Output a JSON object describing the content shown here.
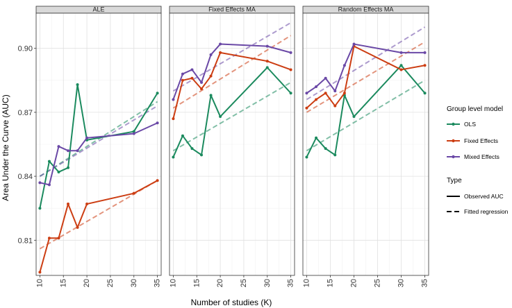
{
  "chart_data": {
    "type": "line",
    "xlabel": "Number of studies (K)",
    "ylabel": "Area Under the Curve (AUC)",
    "xticks": [
      10,
      15,
      20,
      25,
      30,
      35
    ],
    "yticks": [
      0.81,
      0.84,
      0.87,
      0.9
    ],
    "ytick_labels": [
      "0.81",
      "0.84",
      "0.87",
      "0.90"
    ],
    "xlim": [
      9.2,
      35.8
    ],
    "ylim": [
      0.7935,
      0.9165
    ],
    "grid": true,
    "legend_placement": "right",
    "colors": {
      "OLS": "#1b8a5e",
      "Fixed Effects": "#cc3d12",
      "Mixed Effects": "#6a48a6"
    },
    "legend": {
      "groups_title": "Group level model",
      "groups": [
        "OLS",
        "Fixed Effects",
        "Mixed Effects"
      ],
      "type_title": "Type",
      "types": [
        "Observed AUC",
        "Fitted regression"
      ]
    },
    "panels": [
      {
        "title": "ALE",
        "series": [
          {
            "name": "OLS",
            "x": [
              10,
              12,
              14,
              16,
              18,
              20,
              30,
              35
            ],
            "y": [
              0.825,
              0.847,
              0.842,
              0.844,
              0.883,
              0.857,
              0.861,
              0.879
            ]
          },
          {
            "name": "Fixed Effects",
            "x": [
              10,
              12,
              14,
              16,
              18,
              20,
              30,
              35
            ],
            "y": [
              0.795,
              0.811,
              0.811,
              0.827,
              0.816,
              0.827,
              0.832,
              0.838
            ]
          },
          {
            "name": "Mixed Effects",
            "x": [
              10,
              12,
              14,
              16,
              18,
              20,
              30,
              35
            ],
            "y": [
              0.837,
              0.836,
              0.854,
              0.852,
              0.852,
              0.858,
              0.86,
              0.865
            ]
          }
        ],
        "fits": [
          {
            "name": "OLS",
            "x": [
              10,
              35
            ],
            "y": [
              0.84,
              0.875
            ]
          },
          {
            "name": "Fixed Effects",
            "x": [
              10,
              35
            ],
            "y": [
              0.806,
              0.838
            ]
          },
          {
            "name": "Mixed Effects",
            "x": [
              10,
              35
            ],
            "y": [
              0.84,
              0.873
            ]
          }
        ]
      },
      {
        "title": "Fixed Effects MA",
        "series": [
          {
            "name": "OLS",
            "x": [
              10,
              12,
              14,
              16,
              18,
              20,
              30,
              35
            ],
            "y": [
              0.849,
              0.859,
              0.853,
              0.85,
              0.878,
              0.868,
              0.891,
              0.879
            ]
          },
          {
            "name": "Fixed Effects",
            "x": [
              10,
              12,
              14,
              16,
              18,
              20,
              30,
              35
            ],
            "y": [
              0.867,
              0.885,
              0.886,
              0.881,
              0.887,
              0.898,
              0.894,
              0.89
            ]
          },
          {
            "name": "Mixed Effects",
            "x": [
              10,
              12,
              14,
              16,
              18,
              20,
              30,
              35
            ],
            "y": [
              0.876,
              0.888,
              0.89,
              0.884,
              0.897,
              0.902,
              0.901,
              0.898
            ]
          }
        ],
        "fits": [
          {
            "name": "OLS",
            "x": [
              10,
              35
            ],
            "y": [
              0.852,
              0.884
            ]
          },
          {
            "name": "Fixed Effects",
            "x": [
              10,
              35
            ],
            "y": [
              0.872,
              0.906
            ]
          },
          {
            "name": "Mixed Effects",
            "x": [
              10,
              35
            ],
            "y": [
              0.88,
              0.912
            ]
          }
        ]
      },
      {
        "title": "Random Effects MA",
        "series": [
          {
            "name": "OLS",
            "x": [
              10,
              12,
              14,
              16,
              18,
              20,
              30,
              35
            ],
            "y": [
              0.849,
              0.858,
              0.853,
              0.85,
              0.878,
              0.868,
              0.892,
              0.879
            ]
          },
          {
            "name": "Fixed Effects",
            "x": [
              10,
              12,
              14,
              16,
              18,
              20,
              30,
              35
            ],
            "y": [
              0.872,
              0.876,
              0.879,
              0.873,
              0.879,
              0.901,
              0.89,
              0.892
            ]
          },
          {
            "name": "Mixed Effects",
            "x": [
              10,
              12,
              14,
              16,
              18,
              20,
              30,
              35
            ],
            "y": [
              0.879,
              0.882,
              0.886,
              0.88,
              0.892,
              0.902,
              0.898,
              0.898
            ]
          }
        ],
        "fits": [
          {
            "name": "OLS",
            "x": [
              10,
              35
            ],
            "y": [
              0.852,
              0.885
            ]
          },
          {
            "name": "Fixed Effects",
            "x": [
              10,
              35
            ],
            "y": [
              0.87,
              0.903
            ]
          },
          {
            "name": "Mixed Effects",
            "x": [
              10,
              35
            ],
            "y": [
              0.876,
              0.91
            ]
          }
        ]
      }
    ]
  }
}
